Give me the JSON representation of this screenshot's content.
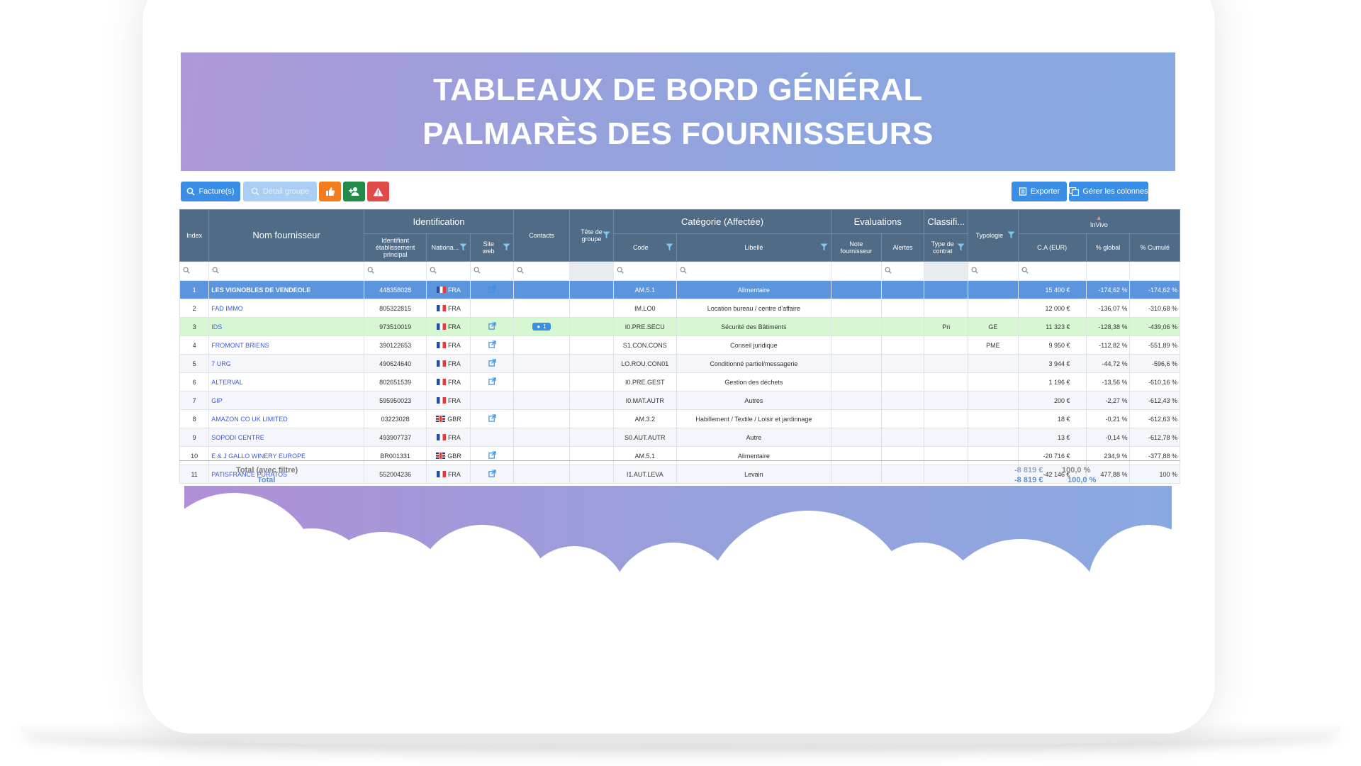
{
  "banner": {
    "line1": "TABLEAUX DE BORD GÉNÉRAL",
    "line2": "PALMARÈS DES FOURNISSEURS"
  },
  "toolbar": {
    "factures_label": "Facture(s)",
    "detail_groupe_label": "Détail groupe",
    "exporter_label": "Exporter",
    "gerer_colonnes_label": "Gérer les colonnes"
  },
  "headers": {
    "index": "Index",
    "nom": "Nom fournisseur",
    "identification": "Identification",
    "identifiant": "Identifiant établissement principal",
    "nationalite": "Nationa...",
    "site_web": "Site web",
    "contacts": "Contacts",
    "tete_groupe": "Tête de groupe",
    "categorie": "Catégorie (Affectée)",
    "code": "Code",
    "libelle": "Libellé",
    "evaluations": "Evaluations",
    "note": "Note fournisseur",
    "alertes": "Alertes",
    "classification": "Classifi...",
    "type_contrat": "Type de contrat",
    "typologie": "Typologie",
    "invivo": "InVivo",
    "ca": "C.A (EUR)",
    "pct_global": "% global",
    "pct_cumule": "% Cumulé"
  },
  "rows": [
    {
      "index": "1",
      "nom": "LES VIGNOBLES DE VENDEOLE",
      "id": "448358028",
      "flag": "fr",
      "nat": "FRA",
      "site": true,
      "contacts": "",
      "code": "AM.5.1",
      "libelle": "Alimentaire",
      "type_contrat": "",
      "typologie": "",
      "ca": "15 400 €",
      "global": "-174,62 %",
      "cumule": "-174,62 %"
    },
    {
      "index": "2",
      "nom": "FAD IMMO",
      "id": "805322815",
      "flag": "fr",
      "nat": "FRA",
      "site": false,
      "contacts": "",
      "code": "IM.LO0",
      "libelle": "Location bureau / centre d'affaire",
      "type_contrat": "",
      "typologie": "",
      "ca": "12 000 €",
      "global": "-136,07 %",
      "cumule": "-310,68 %"
    },
    {
      "index": "3",
      "nom": "IDS",
      "id": "973510019",
      "flag": "fr",
      "nat": "FRA",
      "site": true,
      "contacts": "1",
      "code": "I0.PRE.SECU",
      "libelle": "Sécurité des Bâtiments",
      "type_contrat": "Pri",
      "typologie": "GE",
      "ca": "11 323 €",
      "global": "-128,38 %",
      "cumule": "-439,06 %"
    },
    {
      "index": "4",
      "nom": "FROMONT BRIENS",
      "id": "390122653",
      "flag": "fr",
      "nat": "FRA",
      "site": true,
      "contacts": "",
      "code": "S1.CON.CONS",
      "libelle": "Conseil juridique",
      "type_contrat": "",
      "typologie": "PME",
      "ca": "9 950 €",
      "global": "-112,82 %",
      "cumule": "-551,89 %"
    },
    {
      "index": "5",
      "nom": "7 URG",
      "id": "490624640",
      "flag": "fr",
      "nat": "FRA",
      "site": true,
      "contacts": "",
      "code": "LO.ROU.CON01",
      "libelle": "Conditionné partiel/messagerie",
      "type_contrat": "",
      "typologie": "",
      "ca": "3 944 €",
      "global": "-44,72 %",
      "cumule": "-596,6 %"
    },
    {
      "index": "6",
      "nom": "ALTERVAL",
      "id": "802651539",
      "flag": "fr",
      "nat": "FRA",
      "site": true,
      "contacts": "",
      "code": "I0.PRE.GEST",
      "libelle": "Gestion des déchets",
      "type_contrat": "",
      "typologie": "",
      "ca": "1 196 €",
      "global": "-13,56 %",
      "cumule": "-610,16 %"
    },
    {
      "index": "7",
      "nom": "GIP",
      "id": "595950023",
      "flag": "fr",
      "nat": "FRA",
      "site": false,
      "contacts": "",
      "code": "I0.MAT.AUTR",
      "libelle": "Autres",
      "type_contrat": "",
      "typologie": "",
      "ca": "200 €",
      "global": "-2,27 %",
      "cumule": "-612,43 %"
    },
    {
      "index": "8",
      "nom": "AMAZON CO UK LIMITED",
      "id": "03223028",
      "flag": "gb",
      "nat": "GBR",
      "site": true,
      "contacts": "",
      "code": "AM.3.2",
      "libelle": "Habillement / Textile / Loisir et jardinnage",
      "type_contrat": "",
      "typologie": "",
      "ca": "18 €",
      "global": "-0,21 %",
      "cumule": "-612,63 %"
    },
    {
      "index": "9",
      "nom": "SOPODI CENTRE",
      "id": "493907737",
      "flag": "fr",
      "nat": "FRA",
      "site": false,
      "contacts": "",
      "code": "S0.AUT.AUTR",
      "libelle": "Autre",
      "type_contrat": "",
      "typologie": "",
      "ca": "13 €",
      "global": "-0,14 %",
      "cumule": "-612,78 %"
    },
    {
      "index": "10",
      "nom": "E & J GALLO WINERY EUROPE",
      "id": "BR001331",
      "flag": "gb",
      "nat": "GBR",
      "site": true,
      "contacts": "",
      "code": "AM.5.1",
      "libelle": "Alimentaire",
      "type_contrat": "",
      "typologie": "",
      "ca": "-20 716 €",
      "global": "234,9 %",
      "cumule": "-377,88 %"
    },
    {
      "index": "11",
      "nom": "PATISFRANCE PURATOS",
      "id": "552004236",
      "flag": "fr",
      "nat": "FRA",
      "site": true,
      "contacts": "",
      "code": "I1.AUT.LEVA",
      "libelle": "Levain",
      "type_contrat": "",
      "typologie": "",
      "ca": "-42 146 €",
      "global": "477,88 %",
      "cumule": "100 %"
    }
  ],
  "totals": {
    "filtered_label": "Total (avec filtre)",
    "filtered_ca": "-8 819 €",
    "filtered_pct": "100,0 %",
    "total_label": "Total",
    "total_ca": "-8 819 €",
    "total_pct": "100,0 %"
  },
  "colors": {
    "header_bg": "#4f6b85",
    "selected_row": "#5c95dd",
    "highlight_row": "#d7f7d3",
    "accent": "#3a8ee6",
    "link": "#3b5bd9"
  }
}
